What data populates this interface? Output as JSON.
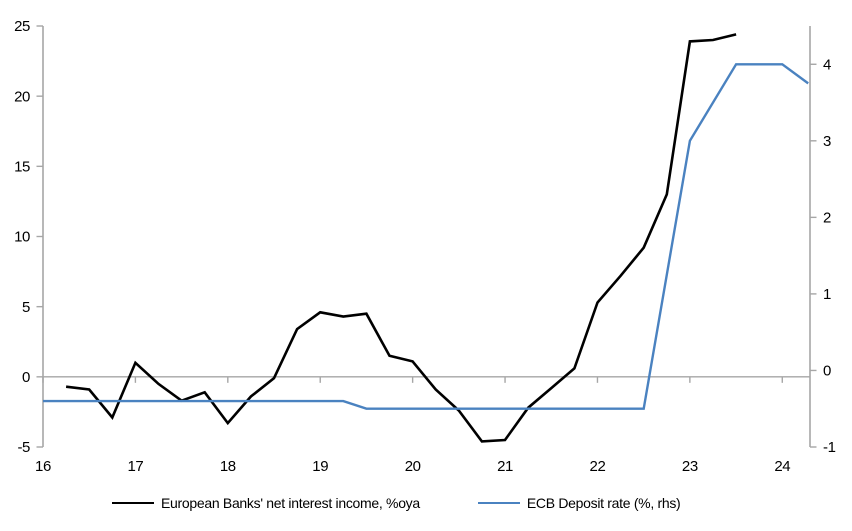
{
  "chart_data": {
    "type": "line",
    "title": "",
    "xlabel": "",
    "ylabel_left": "",
    "ylabel_right": "",
    "grid": false,
    "zero_line": true,
    "legend_position": "bottom",
    "colors": {
      "axis_line": "#a6a6a6",
      "zero_line": "#a6a6a6",
      "series_black": "#000000",
      "series_blue": "#4a82c0",
      "tick_label": "#000000"
    },
    "x_axis": {
      "min": 2016,
      "max": 2024.3,
      "tick_values": [
        2016,
        2017,
        2018,
        2019,
        2020,
        2021,
        2022,
        2023,
        2024
      ],
      "tick_labels": [
        "16",
        "17",
        "18",
        "19",
        "20",
        "21",
        "22",
        "23",
        "24"
      ]
    },
    "left_axis": {
      "min": -5,
      "max": 25,
      "tick_values": [
        -5,
        0,
        5,
        10,
        15,
        20,
        25
      ],
      "tick_labels": [
        "-5",
        "0",
        "5",
        "10",
        "15",
        "20",
        "25"
      ]
    },
    "right_axis": {
      "min": -1,
      "max": 4.5,
      "tick_values": [
        -1,
        0,
        1,
        2,
        3,
        4
      ],
      "tick_labels": [
        "-1",
        "0",
        "1",
        "2",
        "3",
        "4"
      ]
    },
    "series": [
      {
        "name": "European Banks' net interest income, %oya",
        "axis": "left",
        "color": "#000000",
        "width": 2.6,
        "x": [
          2016.25,
          2016.5,
          2016.75,
          2017.0,
          2017.25,
          2017.5,
          2017.75,
          2018.0,
          2018.25,
          2018.5,
          2018.75,
          2019.0,
          2019.25,
          2019.5,
          2019.75,
          2020.0,
          2020.25,
          2020.5,
          2020.75,
          2021.0,
          2021.25,
          2021.5,
          2021.75,
          2022.0,
          2022.25,
          2022.5,
          2022.75,
          2023.0,
          2023.25,
          2023.5
        ],
        "values": [
          -0.7,
          -0.9,
          -2.9,
          1.0,
          -0.5,
          -1.7,
          -1.1,
          -3.3,
          -1.4,
          -0.1,
          3.4,
          4.6,
          4.3,
          4.5,
          1.5,
          1.1,
          -0.9,
          -2.4,
          -4.6,
          -4.5,
          -2.2,
          -0.8,
          0.6,
          5.3,
          7.2,
          9.2,
          13.0,
          23.9,
          24.0,
          24.4
        ]
      },
      {
        "name": "ECB Deposit rate (%, rhs)",
        "axis": "right",
        "color": "#4a82c0",
        "width": 2.4,
        "x": [
          2016.0,
          2019.25,
          2019.5,
          2022.5,
          2023.0,
          2023.5,
          2024.0,
          2024.28
        ],
        "values": [
          -0.4,
          -0.4,
          -0.5,
          -0.5,
          3.0,
          4.0,
          4.0,
          3.75
        ]
      }
    ]
  }
}
